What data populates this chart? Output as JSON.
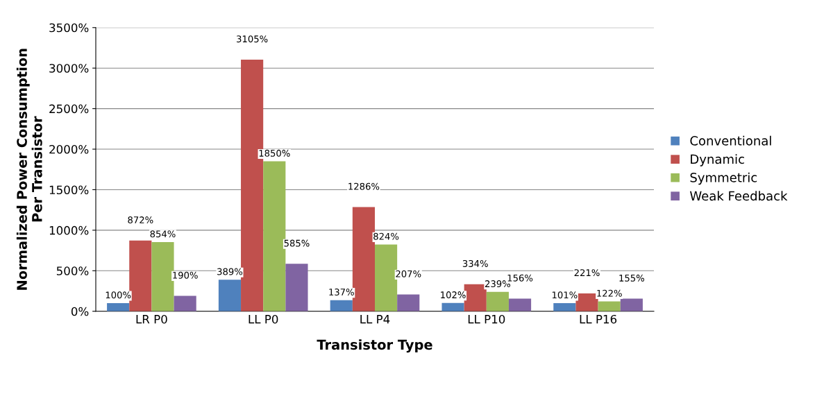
{
  "chart_data": {
    "type": "bar",
    "xlabel": "Transistor Type",
    "ylabel": "Normalized Power Consumption\nPer Transistor",
    "categories": [
      "LR P0",
      "LL P0",
      "LL P4",
      "LL P10",
      "LL P16"
    ],
    "series": [
      {
        "name": "Conventional",
        "color": "#4f81bd",
        "values": [
          100,
          389,
          137,
          102,
          101
        ],
        "value_labels": [
          "100%",
          "389%",
          "137%",
          "102%",
          "101%"
        ]
      },
      {
        "name": "Dynamic",
        "color": "#c0504d",
        "values": [
          872,
          3105,
          1286,
          334,
          221
        ],
        "value_labels": [
          "872%",
          "3105%",
          "1286%",
          "334%",
          "221%"
        ]
      },
      {
        "name": "Symmetric",
        "color": "#9bbb59",
        "values": [
          854,
          1850,
          824,
          239,
          122
        ],
        "value_labels": [
          "854%",
          "1850%",
          "824%",
          "239%",
          "122%"
        ]
      },
      {
        "name": "Weak Feedback",
        "color": "#8064a2",
        "values": [
          190,
          585,
          207,
          156,
          155
        ],
        "value_labels": [
          "190%",
          "585%",
          "207%",
          "156%",
          "155%"
        ]
      }
    ],
    "ylim": [
      0,
      3500
    ],
    "yticks": [
      {
        "value": 0,
        "label": "0%"
      },
      {
        "value": 500,
        "label": "500%"
      },
      {
        "value": 1000,
        "label": "1000%"
      },
      {
        "value": 1500,
        "label": "1500%"
      },
      {
        "value": 2000,
        "label": "2000%"
      },
      {
        "value": 2500,
        "label": "2500%"
      },
      {
        "value": 3000,
        "label": "3000%"
      },
      {
        "value": 3500,
        "label": "3500%"
      }
    ],
    "grid": "y",
    "legend": "right"
  }
}
